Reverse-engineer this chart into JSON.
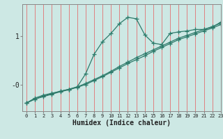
{
  "xlabel": "Humidex (Indice chaleur)",
  "bg_color": "#cde8e4",
  "line_color": "#2d7a6a",
  "grid_color": "#e08080",
  "x_min": -0.5,
  "x_max": 23,
  "y_min": -0.55,
  "y_max": 1.65,
  "xticks": [
    0,
    1,
    2,
    3,
    4,
    5,
    6,
    7,
    8,
    9,
    10,
    11,
    12,
    13,
    14,
    15,
    16,
    17,
    18,
    19,
    20,
    21,
    22,
    23
  ],
  "yticks": [
    0.0,
    1.0
  ],
  "ytick_labels": [
    "-0",
    "1"
  ],
  "line1_x": [
    0,
    1,
    2,
    3,
    4,
    5,
    6,
    7,
    8,
    9,
    10,
    11,
    12,
    13,
    14,
    15,
    16,
    17,
    18,
    19,
    20,
    21,
    22,
    23
  ],
  "line1_y": [
    -0.38,
    -0.28,
    -0.22,
    -0.18,
    -0.14,
    -0.1,
    -0.05,
    0.22,
    0.62,
    0.88,
    1.05,
    1.25,
    1.38,
    1.35,
    1.02,
    0.85,
    0.82,
    1.05,
    1.08,
    1.1,
    1.13,
    1.13,
    1.18,
    1.28
  ],
  "line2_x": [
    0,
    1,
    2,
    3,
    4,
    5,
    6,
    7,
    8,
    9,
    10,
    11,
    12,
    13,
    14,
    15,
    16,
    17,
    18,
    19,
    20,
    21,
    22,
    23
  ],
  "line2_y": [
    -0.38,
    -0.3,
    -0.24,
    -0.19,
    -0.14,
    -0.1,
    -0.05,
    0.02,
    0.1,
    0.18,
    0.27,
    0.37,
    0.46,
    0.55,
    0.63,
    0.71,
    0.79,
    0.87,
    0.95,
    1.01,
    1.07,
    1.13,
    1.19,
    1.26
  ],
  "line3_x": [
    0,
    1,
    2,
    3,
    4,
    5,
    6,
    7,
    8,
    9,
    10,
    11,
    12,
    13,
    14,
    15,
    16,
    17,
    18,
    19,
    20,
    21,
    22,
    23
  ],
  "line3_y": [
    -0.38,
    -0.3,
    -0.25,
    -0.2,
    -0.15,
    -0.11,
    -0.06,
    0.0,
    0.08,
    0.16,
    0.25,
    0.34,
    0.43,
    0.51,
    0.59,
    0.68,
    0.76,
    0.84,
    0.92,
    0.98,
    1.04,
    1.1,
    1.16,
    1.23
  ],
  "marker": "+",
  "marker_size": 4,
  "lw": 0.9
}
